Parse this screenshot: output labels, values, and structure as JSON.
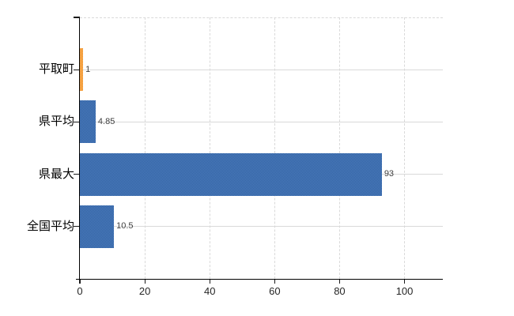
{
  "chart_data": {
    "type": "bar",
    "orientation": "horizontal",
    "title": "",
    "xlabel": "",
    "ylabel": "",
    "categories": [
      "平取町",
      "県平均",
      "県最大",
      "全国平均"
    ],
    "values": [
      1,
      4.85,
      93,
      10.5
    ],
    "value_labels": [
      "1",
      "4.85",
      "93",
      "10.5"
    ],
    "bar_styles": [
      "orange",
      "blue",
      "blue",
      "blue"
    ],
    "xticks": [
      0,
      20,
      40,
      60,
      80,
      100
    ],
    "xtick_labels": [
      "0",
      "20",
      "40",
      "60",
      "80",
      "100"
    ],
    "xlim": [
      0,
      111.8
    ],
    "grid": true,
    "legend": false
  },
  "colors": {
    "background": "#ffffff",
    "bar_blue_dark": "#31619f",
    "bar_blue_light": "#4d7dc0",
    "bar_orange_dark": "#ee8a23",
    "bar_orange_light": "#fcba62",
    "gridline": "#d9d9d9",
    "axis": "#000000",
    "category_label": "#000000",
    "value_label": "#3f3f3f",
    "tick_label": "#262626"
  }
}
